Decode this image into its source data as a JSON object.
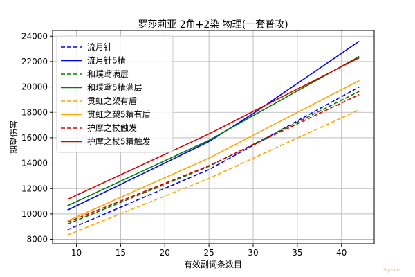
{
  "chart_data": {
    "type": "line",
    "title": "罗莎莉亚 2角+2染 物理(一套普攻)",
    "xlabel": "有效副词条数目",
    "ylabel": "期望伤害",
    "xlim": [
      7.3,
      43.7
    ],
    "ylim": [
      7650,
      24450
    ],
    "xticks": [
      10,
      15,
      20,
      25,
      30,
      35,
      40
    ],
    "yticks": [
      8000,
      10000,
      12000,
      14000,
      16000,
      18000,
      20000,
      22000,
      24000
    ],
    "grid": true,
    "legend_position": "top-left",
    "x": [
      9,
      42
    ],
    "series": [
      {
        "name": "流月针",
        "color": "#0000ff",
        "dash": true,
        "points": [
          [
            9,
            8750
          ],
          [
            25,
            13500
          ],
          [
            42,
            20000
          ]
        ]
      },
      {
        "name": "流月针5精",
        "color": "#0000ff",
        "dash": false,
        "points": [
          [
            9,
            10300
          ],
          [
            25,
            15700
          ],
          [
            30,
            17900
          ],
          [
            42,
            23600
          ]
        ]
      },
      {
        "name": "和璞鸢满层",
        "color": "#008000",
        "dash": true,
        "points": [
          [
            9,
            9200
          ],
          [
            25,
            13750
          ],
          [
            42,
            19650
          ]
        ]
      },
      {
        "name": "和璞鸢5精满层",
        "color": "#008000",
        "dash": false,
        "points": [
          [
            9,
            10650
          ],
          [
            25,
            15800
          ],
          [
            42,
            22400
          ]
        ]
      },
      {
        "name": "贯虹之槊有盾",
        "color": "#ffa500",
        "dash": true,
        "points": [
          [
            9,
            8350
          ],
          [
            25,
            12800
          ],
          [
            42,
            18200
          ]
        ]
      },
      {
        "name": "贯虹之槊5精有盾",
        "color": "#ffa500",
        "dash": false,
        "points": [
          [
            9,
            9450
          ],
          [
            25,
            14400
          ],
          [
            42,
            20500
          ]
        ]
      },
      {
        "name": "护摩之杖触发",
        "color": "#dd0000",
        "dash": true,
        "points": [
          [
            9,
            9350
          ],
          [
            25,
            13800
          ],
          [
            42,
            19400
          ]
        ]
      },
      {
        "name": "护摩之杖5精触发",
        "color": "#dd0000",
        "dash": false,
        "points": [
          [
            9,
            11150
          ],
          [
            25,
            16300
          ],
          [
            42,
            22300
          ]
        ]
      }
    ]
  },
  "watermark": {
    "text": "9game"
  }
}
